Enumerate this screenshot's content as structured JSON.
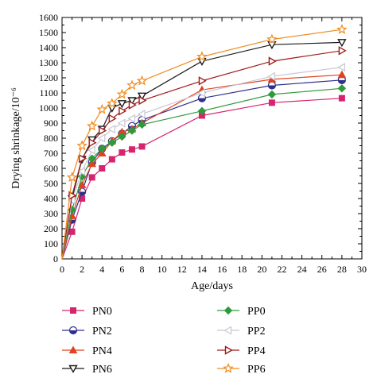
{
  "chart_data": {
    "type": "line",
    "title": "",
    "xlabel": "Age/days",
    "ylabel": "Drying shrinkage/10⁻⁶",
    "xlim": [
      0,
      30
    ],
    "ylim": [
      0,
      1600
    ],
    "xticks": [
      "0",
      "2",
      "4",
      "6",
      "8",
      "10",
      "12",
      "14",
      "16",
      "18",
      "20",
      "22",
      "24",
      "26",
      "28",
      "30"
    ],
    "yticks": [
      "0",
      "100",
      "200",
      "300",
      "400",
      "500",
      "600",
      "700",
      "800",
      "900",
      "1000",
      "1100",
      "1200",
      "1300",
      "1400",
      "1500",
      "1600"
    ],
    "grid": false,
    "legend_position": "bottom",
    "series": [
      {
        "name": "PN0",
        "color": "#d6246e",
        "marker": "square",
        "x": [
          0,
          1,
          2,
          3,
          4,
          5,
          6,
          7,
          8,
          14,
          21,
          28
        ],
        "y": [
          0,
          180,
          400,
          540,
          600,
          660,
          705,
          725,
          745,
          950,
          1035,
          1065
        ]
      },
      {
        "name": "PN2",
        "color": "#2e2f8c",
        "marker": "circle-half",
        "x": [
          0,
          1,
          2,
          3,
          4,
          5,
          6,
          7,
          8,
          14,
          21,
          28
        ],
        "y": [
          0,
          260,
          445,
          640,
          730,
          780,
          830,
          880,
          920,
          1065,
          1150,
          1185
        ]
      },
      {
        "name": "PN4",
        "color": "#e0421f",
        "marker": "triangle-up",
        "x": [
          0,
          1,
          2,
          3,
          4,
          5,
          6,
          7,
          8,
          14,
          21,
          28
        ],
        "y": [
          0,
          285,
          490,
          630,
          700,
          780,
          840,
          860,
          900,
          1120,
          1190,
          1220
        ]
      },
      {
        "name": "PN6",
        "color": "#1a1a1a",
        "marker": "triangle-down",
        "x": [
          0,
          1,
          2,
          3,
          4,
          5,
          6,
          7,
          8,
          14,
          21,
          28
        ],
        "y": [
          0,
          400,
          660,
          790,
          860,
          1000,
          1030,
          1050,
          1080,
          1310,
          1420,
          1435
        ]
      },
      {
        "name": "PP0",
        "color": "#2f9a3c",
        "marker": "diamond",
        "x": [
          0,
          1,
          2,
          3,
          4,
          5,
          6,
          7,
          8,
          14,
          21,
          28
        ],
        "y": [
          0,
          325,
          545,
          665,
          730,
          770,
          810,
          850,
          890,
          980,
          1090,
          1130
        ]
      },
      {
        "name": "PP2",
        "color": "#c8c8d2",
        "marker": "triangle-left",
        "x": [
          0,
          1,
          2,
          3,
          4,
          5,
          6,
          7,
          8,
          14,
          21,
          28
        ],
        "y": [
          0,
          390,
          580,
          720,
          800,
          860,
          900,
          930,
          960,
          1100,
          1210,
          1270
        ]
      },
      {
        "name": "PP4",
        "color": "#a01919",
        "marker": "triangle-right",
        "x": [
          0,
          1,
          2,
          3,
          4,
          5,
          6,
          7,
          8,
          14,
          21,
          28
        ],
        "y": [
          0,
          420,
          665,
          770,
          850,
          930,
          980,
          1020,
          1050,
          1180,
          1310,
          1380
        ]
      },
      {
        "name": "PP6",
        "color": "#f08a1c",
        "marker": "star",
        "x": [
          0,
          1,
          2,
          3,
          4,
          5,
          6,
          7,
          8,
          14,
          21,
          28
        ],
        "y": [
          0,
          540,
          750,
          880,
          990,
          1030,
          1090,
          1150,
          1180,
          1340,
          1455,
          1520
        ]
      }
    ]
  }
}
